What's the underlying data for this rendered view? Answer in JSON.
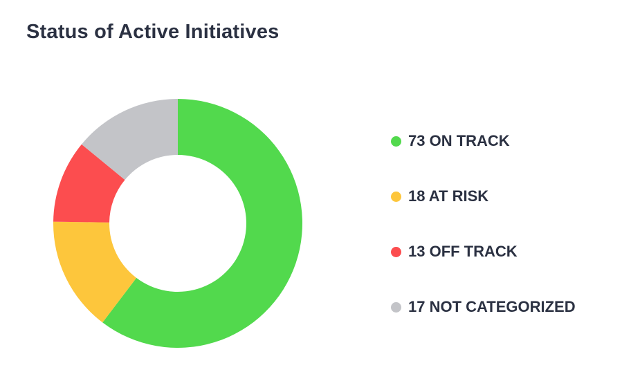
{
  "chart_data": {
    "type": "pie",
    "variant": "donut",
    "title": "Status of Active Initiatives",
    "legend_position": "right",
    "slices": [
      {
        "label": "73 ON TRACK",
        "count": 73,
        "color": "#52d94d"
      },
      {
        "label": "18 AT RISK",
        "count": 18,
        "color": "#fdc63c"
      },
      {
        "label": "13 OFF TRACK",
        "count": 13,
        "color": "#fc4d4f"
      },
      {
        "label": "17 NOT CATEGORIZED",
        "count": 17,
        "color": "#c3c4c8"
      }
    ]
  }
}
